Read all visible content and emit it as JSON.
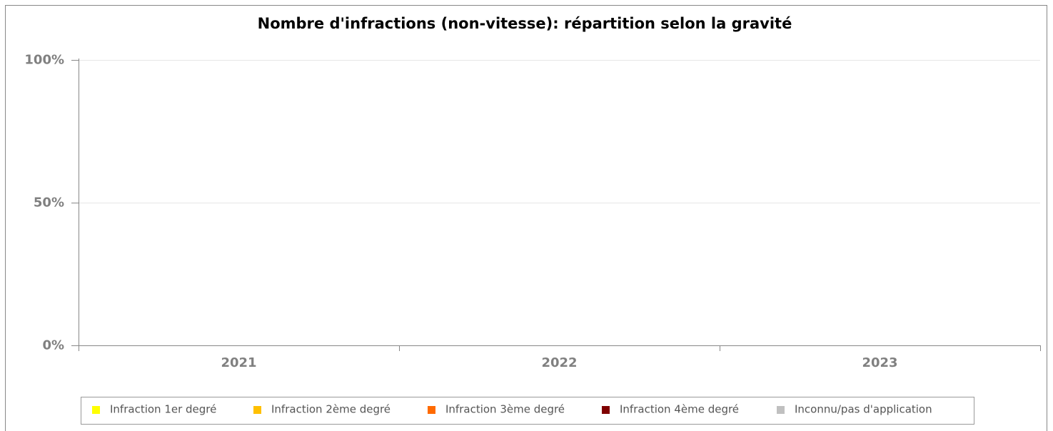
{
  "chart_data": {
    "type": "bar",
    "stacked": true,
    "title": "Nombre d'infractions (non-vitesse): répartition selon la gravité",
    "categories": [
      "2021",
      "2022",
      "2023"
    ],
    "series": [
      {
        "name": "Infraction 1er degré",
        "color": "#ffff00",
        "values": [
          null,
          null,
          null
        ]
      },
      {
        "name": "Infraction 2ème degré",
        "color": "#ffc000",
        "values": [
          null,
          null,
          null
        ]
      },
      {
        "name": "Infraction 3ème degré",
        "color": "#ff6a00",
        "values": [
          null,
          null,
          null
        ]
      },
      {
        "name": "Infraction 4ème degré",
        "color": "#7f0000",
        "values": [
          null,
          null,
          null
        ]
      },
      {
        "name": "Inconnu/pas d'application",
        "color": "#c0c0c0",
        "values": [
          null,
          null,
          null
        ]
      }
    ],
    "ylim": [
      0,
      100
    ],
    "yticks": [
      {
        "value": 0,
        "label": "0%"
      },
      {
        "value": 50,
        "label": "50%"
      },
      {
        "value": 100,
        "label": "100%"
      }
    ],
    "grid": true,
    "legend": "bottom"
  }
}
